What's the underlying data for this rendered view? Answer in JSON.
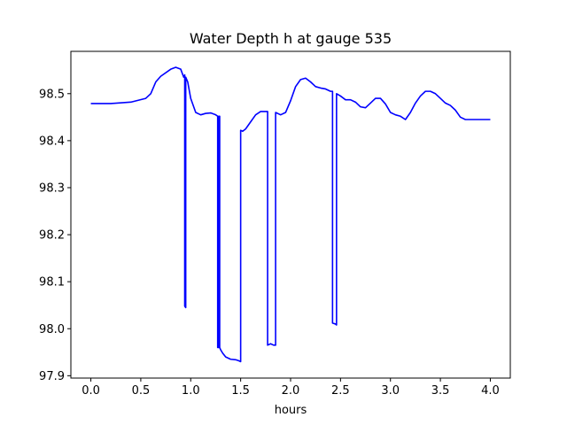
{
  "chart_data": {
    "type": "line",
    "title": "Water Depth h at gauge 535",
    "xlabel": "hours",
    "ylabel": "",
    "xlim": [
      -0.2,
      4.2
    ],
    "ylim": [
      97.895,
      98.59
    ],
    "xticks": [
      0.0,
      0.5,
      1.0,
      1.5,
      2.0,
      2.5,
      3.0,
      3.5,
      4.0
    ],
    "xtick_labels": [
      "0.0",
      "0.5",
      "1.0",
      "1.5",
      "2.0",
      "2.5",
      "3.0",
      "3.5",
      "4.0"
    ],
    "yticks": [
      97.9,
      98.0,
      98.1,
      98.2,
      98.3,
      98.4,
      98.5
    ],
    "ytick_labels": [
      "97.9",
      "98.0",
      "98.1",
      "98.2",
      "98.3",
      "98.4",
      "98.5"
    ],
    "grid": false,
    "series": [
      {
        "color": "#0000ff",
        "x": [
          0.0,
          0.2,
          0.4,
          0.55,
          0.6,
          0.65,
          0.7,
          0.8,
          0.85,
          0.9,
          0.93,
          0.94,
          0.94,
          0.95,
          0.95,
          0.97,
          1.0,
          1.05,
          1.1,
          1.15,
          1.2,
          1.25,
          1.27,
          1.27,
          1.28,
          1.28,
          1.29,
          1.29,
          1.3,
          1.32,
          1.35,
          1.4,
          1.45,
          1.48,
          1.5,
          1.5,
          1.52,
          1.55,
          1.6,
          1.65,
          1.7,
          1.76,
          1.77,
          1.77,
          1.8,
          1.83,
          1.85,
          1.85,
          1.9,
          1.95,
          2.0,
          2.05,
          2.1,
          2.15,
          2.2,
          2.25,
          2.3,
          2.35,
          2.4,
          2.42,
          2.42,
          2.45,
          2.46,
          2.46,
          2.5,
          2.55,
          2.6,
          2.65,
          2.7,
          2.75,
          2.8,
          2.85,
          2.9,
          2.95,
          3.0,
          3.05,
          3.1,
          3.15,
          3.2,
          3.25,
          3.3,
          3.35,
          3.4,
          3.45,
          3.5,
          3.55,
          3.6,
          3.65,
          3.7,
          3.75,
          3.8,
          3.85,
          3.9,
          3.95,
          4.0
        ],
        "y": [
          98.479,
          98.479,
          98.482,
          98.49,
          98.5,
          98.525,
          98.537,
          98.552,
          98.556,
          98.552,
          98.535,
          98.54,
          98.048,
          98.045,
          98.535,
          98.525,
          98.49,
          98.46,
          98.455,
          98.458,
          98.459,
          98.455,
          98.452,
          97.96,
          97.96,
          98.452,
          98.452,
          97.96,
          97.955,
          97.948,
          97.94,
          97.935,
          97.934,
          97.932,
          97.93,
          98.422,
          98.42,
          98.425,
          98.44,
          98.455,
          98.462,
          98.462,
          98.462,
          97.965,
          97.968,
          97.965,
          97.965,
          98.46,
          98.455,
          98.46,
          98.485,
          98.515,
          98.53,
          98.533,
          98.525,
          98.515,
          98.512,
          98.51,
          98.505,
          98.505,
          98.012,
          98.01,
          98.008,
          98.5,
          98.495,
          98.487,
          98.487,
          98.482,
          98.472,
          98.47,
          98.48,
          98.49,
          98.49,
          98.478,
          98.46,
          98.455,
          98.452,
          98.445,
          98.46,
          98.48,
          98.495,
          98.505,
          98.505,
          98.5,
          98.49,
          98.48,
          98.475,
          98.465,
          98.45,
          98.445,
          98.445,
          98.445,
          98.445,
          98.445,
          98.445
        ]
      }
    ]
  }
}
